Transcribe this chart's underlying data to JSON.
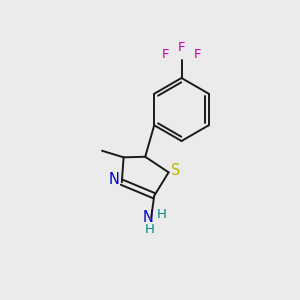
{
  "bg_color": "#ebebeb",
  "bond_color": "#1a1a1a",
  "S_color": "#b8b800",
  "N_color": "#0000cc",
  "F_color": "#cc00aa",
  "H_color": "#008888",
  "figsize": [
    3.0,
    3.0
  ],
  "dpi": 100,
  "xlim": [
    0,
    10
  ],
  "ylim": [
    0,
    10
  ]
}
